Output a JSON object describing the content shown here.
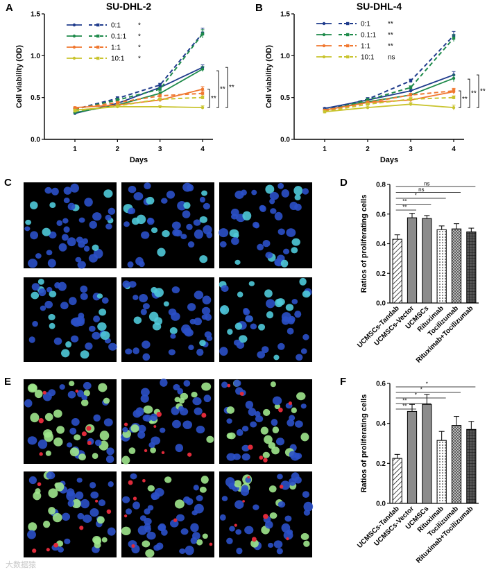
{
  "panel_labels": {
    "a": "A",
    "b": "B",
    "c": "C",
    "d": "D",
    "e": "E",
    "f": "F"
  },
  "watermark": "大数据猿",
  "colors": {
    "navy": "#1f3b8c",
    "green": "#1e8a4a",
    "orange": "#f07830",
    "yellow": "#c9c42e",
    "bar_solid": "#8c8c8c",
    "bar_light": "#c8c8c8",
    "bar_dark": "#5a5a5a",
    "cell_blue": "#2b50c8",
    "cell_cyan": "#4fc9d8",
    "cell_green": "#9ee68c",
    "cell_red": "#e02a3a",
    "image_bg": "#000000"
  },
  "chart_data": [
    {
      "id": "A",
      "type": "line",
      "title": "SU-DHL-2",
      "xlabel": "Days",
      "ylabel": "Cell viability (OD)",
      "x": [
        1,
        2,
        3,
        4
      ],
      "xticks": [
        "1",
        "2",
        "3",
        "4"
      ],
      "yticks": [
        "0.0",
        "0.5",
        "1.0",
        "1.5"
      ],
      "ylim": [
        0,
        1.5
      ],
      "legend": [
        {
          "label": "0:1",
          "color_key": "navy",
          "sig": "*"
        },
        {
          "label": "0.1:1",
          "color_key": "green",
          "sig": "*"
        },
        {
          "label": "1:1",
          "color_key": "orange",
          "sig": "*"
        },
        {
          "label": "10:1",
          "color_key": "yellow",
          "sig": "*"
        }
      ],
      "series": [
        {
          "name": "0:1 solid",
          "color_key": "navy",
          "dash": false,
          "values": [
            0.31,
            0.43,
            0.62,
            0.86
          ],
          "err": [
            0.01,
            0.02,
            0.02,
            0.03
          ]
        },
        {
          "name": "0:1 dashed",
          "color_key": "navy",
          "dash": true,
          "values": [
            0.36,
            0.49,
            0.65,
            1.27
          ],
          "err": [
            0.01,
            0.02,
            0.02,
            0.06
          ]
        },
        {
          "name": "0.1:1 solid",
          "color_key": "green",
          "dash": false,
          "values": [
            0.32,
            0.41,
            0.55,
            0.84
          ],
          "err": [
            0.01,
            0.02,
            0.02,
            0.03
          ]
        },
        {
          "name": "0.1:1 dashed",
          "color_key": "green",
          "dash": true,
          "values": [
            0.36,
            0.47,
            0.6,
            1.26
          ],
          "err": [
            0.01,
            0.02,
            0.02,
            0.05
          ]
        },
        {
          "name": "1:1 solid",
          "color_key": "orange",
          "dash": false,
          "values": [
            0.38,
            0.41,
            0.47,
            0.6
          ],
          "err": [
            0.01,
            0.01,
            0.02,
            0.03
          ]
        },
        {
          "name": "1:1 dashed",
          "color_key": "orange",
          "dash": true,
          "values": [
            0.37,
            0.44,
            0.52,
            0.55
          ],
          "err": [
            0.01,
            0.01,
            0.02,
            0.03
          ]
        },
        {
          "name": "10:1 solid",
          "color_key": "yellow",
          "dash": false,
          "values": [
            0.35,
            0.39,
            0.39,
            0.38
          ],
          "err": [
            0.01,
            0.01,
            0.01,
            0.02
          ]
        },
        {
          "name": "10:1 dashed",
          "color_key": "yellow",
          "dash": true,
          "values": [
            0.34,
            0.4,
            0.48,
            0.5
          ],
          "err": [
            0.01,
            0.01,
            0.01,
            0.02
          ]
        }
      ],
      "brackets": [
        {
          "from": 0.38,
          "to": 0.6,
          "label": "**"
        },
        {
          "from": 0.38,
          "to": 0.82,
          "label": "**"
        },
        {
          "from": 0.38,
          "to": 0.86,
          "label": "**"
        }
      ]
    },
    {
      "id": "B",
      "type": "line",
      "title": "SU-DHL-4",
      "xlabel": "Days",
      "ylabel": "Cell viability (OD)",
      "x": [
        1,
        2,
        3,
        4
      ],
      "xticks": [
        "1",
        "2",
        "3",
        "4"
      ],
      "yticks": [
        "0.0",
        "0.5",
        "1.0",
        "1.5"
      ],
      "ylim": [
        0,
        1.5
      ],
      "legend": [
        {
          "label": "0:1",
          "color_key": "navy",
          "sig": "**"
        },
        {
          "label": "0.1:1",
          "color_key": "green",
          "sig": "**"
        },
        {
          "label": "1:1",
          "color_key": "orange",
          "sig": "**"
        },
        {
          "label": "10:1",
          "color_key": "yellow",
          "sig": "ns"
        }
      ],
      "series": [
        {
          "name": "0:1 solid",
          "color_key": "navy",
          "dash": false,
          "values": [
            0.37,
            0.47,
            0.58,
            0.77
          ],
          "err": [
            0.01,
            0.02,
            0.02,
            0.04
          ]
        },
        {
          "name": "0:1 dashed",
          "color_key": "navy",
          "dash": true,
          "values": [
            0.35,
            0.48,
            0.7,
            1.24
          ],
          "err": [
            0.01,
            0.02,
            0.02,
            0.05
          ]
        },
        {
          "name": "0.1:1 solid",
          "color_key": "green",
          "dash": false,
          "values": [
            0.35,
            0.45,
            0.53,
            0.73
          ],
          "err": [
            0.01,
            0.02,
            0.02,
            0.04
          ]
        },
        {
          "name": "0.1:1 dashed",
          "color_key": "green",
          "dash": true,
          "values": [
            0.34,
            0.47,
            0.62,
            1.21
          ],
          "err": [
            0.01,
            0.02,
            0.02,
            0.04
          ]
        },
        {
          "name": "1:1 solid",
          "color_key": "orange",
          "dash": false,
          "values": [
            0.35,
            0.44,
            0.47,
            0.57
          ],
          "err": [
            0.01,
            0.02,
            0.02,
            0.03
          ]
        },
        {
          "name": "1:1 dashed",
          "color_key": "orange",
          "dash": true,
          "values": [
            0.34,
            0.44,
            0.53,
            0.58
          ],
          "err": [
            0.01,
            0.02,
            0.02,
            0.03
          ]
        },
        {
          "name": "10:1 solid",
          "color_key": "yellow",
          "dash": false,
          "values": [
            0.33,
            0.38,
            0.42,
            0.38
          ],
          "err": [
            0.01,
            0.01,
            0.02,
            0.03
          ]
        },
        {
          "name": "10:1 dashed",
          "color_key": "yellow",
          "dash": true,
          "values": [
            0.33,
            0.42,
            0.48,
            0.5
          ],
          "err": [
            0.01,
            0.01,
            0.02,
            0.02
          ]
        }
      ],
      "brackets": [
        {
          "from": 0.38,
          "to": 0.58,
          "label": "**"
        },
        {
          "from": 0.38,
          "to": 0.72,
          "label": "**"
        },
        {
          "from": 0.38,
          "to": 0.77,
          "label": "**"
        }
      ]
    },
    {
      "id": "D",
      "type": "bar",
      "ylabel": "Ratios of proliferating cells",
      "categories": [
        "UCMSCs-Tandab",
        "UCMSCs-Vector",
        "UCMSCs",
        "Rituximab",
        "Tocilizumab",
        "Rituximab+Tocilizumab"
      ],
      "values": [
        0.43,
        0.575,
        0.57,
        0.495,
        0.5,
        0.48
      ],
      "err": [
        0.03,
        0.03,
        0.02,
        0.025,
        0.035,
        0.025
      ],
      "patterns": [
        "hatch-fwd",
        "solid",
        "solid",
        "dots",
        "cross",
        "grid"
      ],
      "yticks": [
        "0.0",
        "0.2",
        "0.4",
        "0.6",
        "0.8"
      ],
      "ylim": [
        0,
        0.8
      ],
      "comparisons": [
        {
          "to": 1,
          "label": "**"
        },
        {
          "to": 2,
          "label": "**"
        },
        {
          "to": 3,
          "label": "*"
        },
        {
          "to": 4,
          "label": "ns"
        },
        {
          "to": 5,
          "label": "ns"
        }
      ]
    },
    {
      "id": "F",
      "type": "bar",
      "ylabel": "Ratios of proliferating cells",
      "categories": [
        "UCMSCs-Tandab",
        "UCMSCs-Vector",
        "UCMSCs",
        "Rituximab",
        "Tocilizumab",
        "Rituximab+Tocilizumab"
      ],
      "values": [
        0.225,
        0.46,
        0.495,
        0.315,
        0.39,
        0.37
      ],
      "err": [
        0.02,
        0.035,
        0.05,
        0.045,
        0.045,
        0.04
      ],
      "patterns": [
        "hatch-fwd",
        "solid",
        "solid",
        "dots",
        "cross",
        "grid"
      ],
      "yticks": [
        "0.0",
        "0.2",
        "0.4",
        "0.6"
      ],
      "ylim": [
        0,
        0.6
      ],
      "comparisons": [
        {
          "to": 1,
          "label": "**"
        },
        {
          "to": 2,
          "label": "**"
        },
        {
          "to": 3,
          "label": "*"
        },
        {
          "to": 4,
          "label": "*"
        },
        {
          "to": 5,
          "label": "*"
        }
      ]
    }
  ]
}
